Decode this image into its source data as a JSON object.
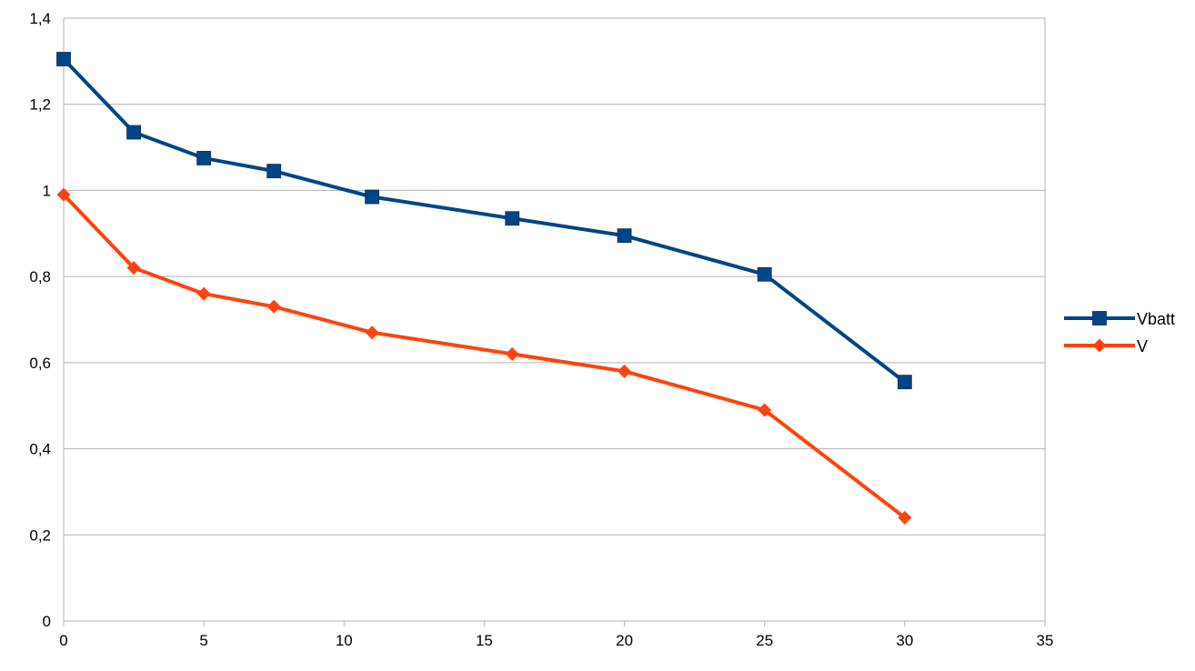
{
  "chart_data": {
    "type": "line",
    "title": "",
    "xlabel": "",
    "ylabel": "",
    "xlim": [
      0,
      35
    ],
    "ylim": [
      0,
      1.4
    ],
    "x_ticks": [
      0,
      5,
      10,
      15,
      20,
      25,
      30,
      35
    ],
    "x_tick_labels": [
      "0",
      "5",
      "10",
      "15",
      "20",
      "25",
      "30",
      "35"
    ],
    "y_ticks": [
      0,
      0.2,
      0.4,
      0.6,
      0.8,
      1,
      1.2,
      1.4
    ],
    "y_tick_labels": [
      "0",
      "0,2",
      "0,4",
      "0,6",
      "0,8",
      "1",
      "1,2",
      "1,4"
    ],
    "grid": "horizontal",
    "legend_position": "right",
    "x": [
      0,
      2.5,
      5,
      7.5,
      11,
      16,
      20,
      25,
      30
    ],
    "series": [
      {
        "name": "Vbatt",
        "color": "#004586",
        "marker": "square",
        "values": [
          1.305,
          1.135,
          1.075,
          1.045,
          0.985,
          0.935,
          0.895,
          0.805,
          0.555
        ]
      },
      {
        "name": "V",
        "color": "#ff420e",
        "marker": "diamond",
        "values": [
          0.99,
          0.82,
          0.76,
          0.73,
          0.67,
          0.62,
          0.58,
          0.49,
          0.24
        ]
      }
    ]
  }
}
